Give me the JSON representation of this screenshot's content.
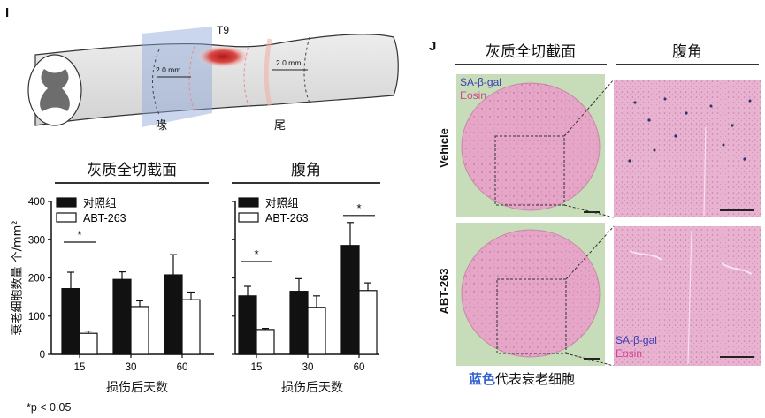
{
  "panel_i": {
    "letter": "I",
    "t9_label": "T9",
    "dim_left": "2.0 mm",
    "dim_right": "2.0 mm",
    "rostral_label": "喙",
    "caudal_label": "尾"
  },
  "panel_j": {
    "letter": "J",
    "col_header_1": "灰质全切截面",
    "col_header_2": "腹角",
    "row_label_1": "Vehicle",
    "row_label_2": "ABT-263",
    "stain_1": "SA-β-gal",
    "stain_2": "Eosin",
    "caption_highlight": "蓝色",
    "caption_rest": "代表衰老细胞"
  },
  "footnote": "*p < 0.05",
  "colors": {
    "vehicle_bar": "#111111",
    "abt_bar": "#ffffff",
    "sa_gal_text": "#3a3fb0",
    "eosin_text": "#d0458f",
    "caption_blue": "#2f5fd0",
    "lesion": "#c0282a"
  },
  "chart_data": [
    {
      "type": "bar",
      "title": "灰质全切截面",
      "ylabel": "衰老细胞数量 个/mm²",
      "xlabel": "损伤后天数",
      "categories": [
        "15",
        "30",
        "60"
      ],
      "ylim": [
        0,
        400
      ],
      "yticks": [
        "0",
        "100",
        "200",
        "300",
        "400"
      ],
      "series": [
        {
          "name": "对照组",
          "values": [
            172,
            196,
            208
          ],
          "errors": [
            43,
            20,
            53
          ]
        },
        {
          "name": "ABT-263",
          "values": [
            55,
            125,
            143
          ],
          "errors": [
            6,
            15,
            20
          ]
        }
      ],
      "annotations": [
        {
          "category_index": 0,
          "text": "*"
        }
      ],
      "legend": "top-left"
    },
    {
      "type": "bar",
      "title": "腹角",
      "xlabel": "损伤后天数",
      "categories": [
        "15",
        "30",
        "60"
      ],
      "ylim": [
        0,
        400
      ],
      "yticks": [
        "0",
        "100",
        "200",
        "300",
        "400"
      ],
      "series": [
        {
          "name": "对照组",
          "values": [
            153,
            165,
            285
          ],
          "errors": [
            25,
            33,
            60
          ]
        },
        {
          "name": "ABT-263",
          "values": [
            65,
            123,
            167
          ],
          "errors": [
            3,
            30,
            20
          ]
        }
      ],
      "annotations": [
        {
          "category_index": 0,
          "text": "*"
        },
        {
          "category_index": 2,
          "text": "*"
        }
      ],
      "legend": "top-left"
    }
  ]
}
